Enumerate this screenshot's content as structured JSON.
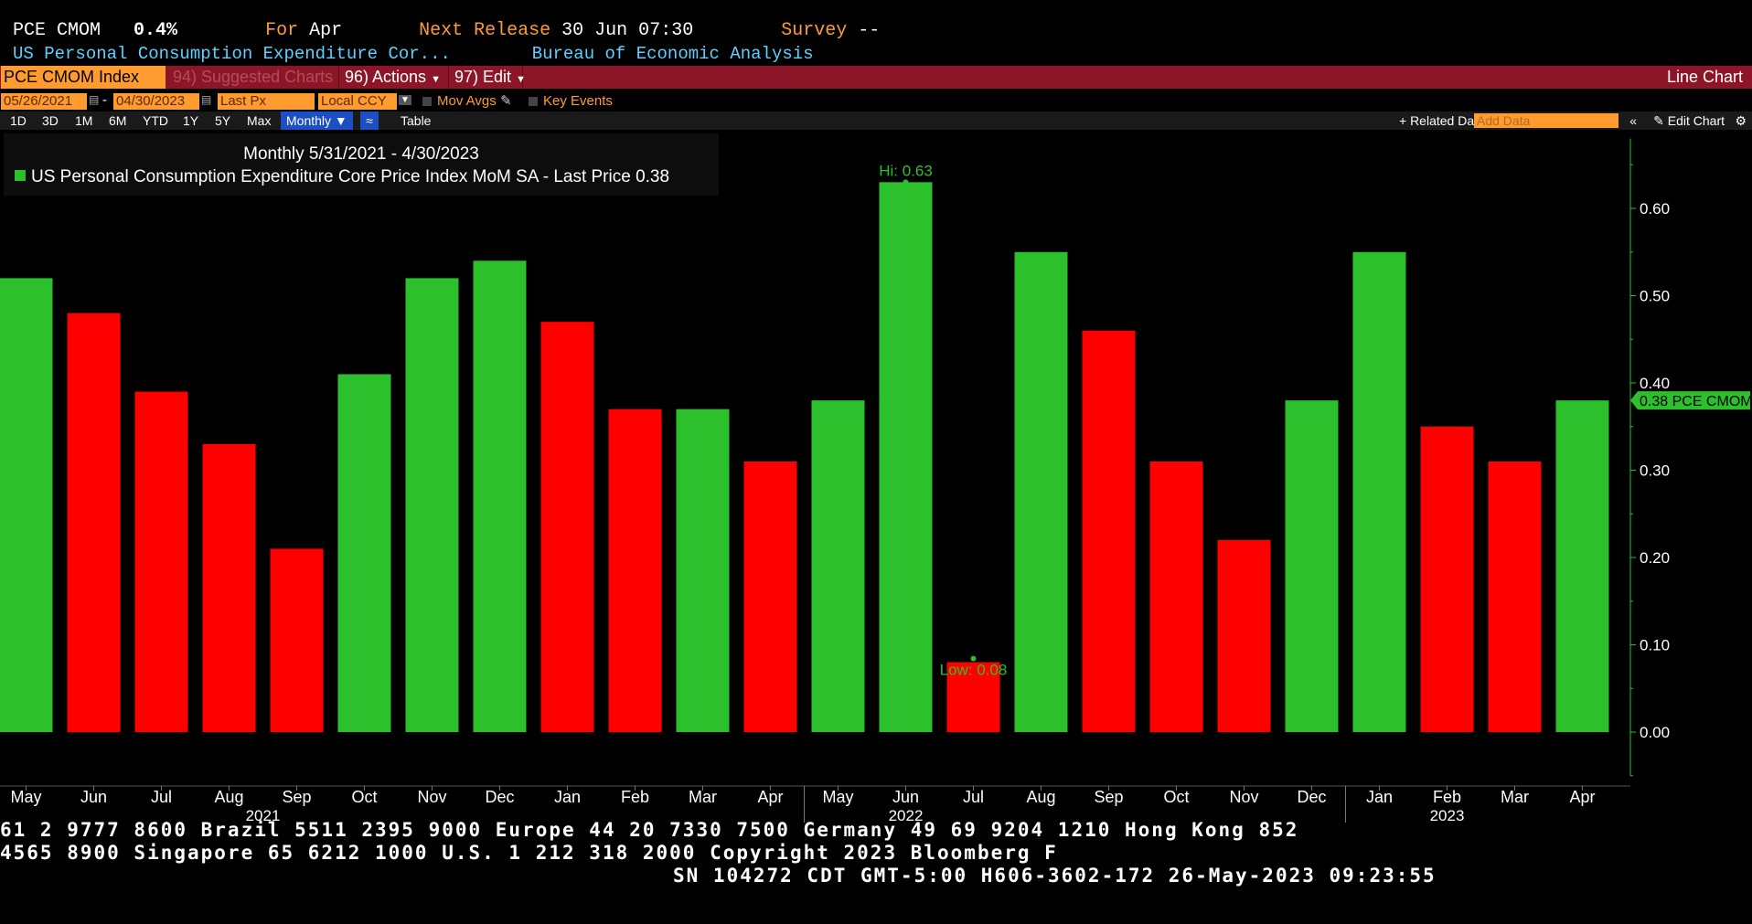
{
  "header": {
    "ticker": "PCE CMOM",
    "value": "0.4%",
    "for_label": "For",
    "for_value": "Apr",
    "release_label": "Next Release",
    "release_value": "30 Jun 07:30",
    "survey_label": "Survey",
    "survey_value": "--",
    "name": "US Personal Consumption Expenditure Cor...",
    "source": "Bureau of Economic Analysis"
  },
  "toolbar": {
    "security": "PCE CMOM Index",
    "suggested": "94) Suggested Charts",
    "actions": "96) Actions",
    "edit": "97) Edit",
    "chart_type": "Line Chart",
    "start_date": "05/26/2021",
    "dash": "-",
    "end_date": "04/30/2023",
    "price_field": "Last Px",
    "currency": "Local CCY",
    "mov_avgs": "Mov Avgs",
    "key_events": "Key Events",
    "periods": [
      "1D",
      "3D",
      "1M",
      "6M",
      "YTD",
      "1Y",
      "5Y",
      "Max"
    ],
    "frequency": "Monthly",
    "table": "Table",
    "related": "+ Related Dat",
    "add_data_placeholder": "Add Data",
    "edit_chart": "Edit Chart"
  },
  "colors": {
    "up": "#2dc02d",
    "down": "#ff0000",
    "accent": "#ff9b2f",
    "bar": "#8c1627"
  },
  "chart_data": {
    "type": "bar",
    "title": "Monthly 5/31/2021 - 4/30/2023",
    "legend": "US Personal Consumption Expenditure Core Price Index MoM SA - Last Price 0.38",
    "categories": [
      "May",
      "Jun",
      "Jul",
      "Aug",
      "Sep",
      "Oct",
      "Nov",
      "Dec",
      "Jan",
      "Feb",
      "Mar",
      "Apr",
      "May",
      "Jun",
      "Jul",
      "Aug",
      "Sep",
      "Oct",
      "Nov",
      "Dec",
      "Jan",
      "Feb",
      "Mar",
      "Apr"
    ],
    "values": [
      0.52,
      0.48,
      0.39,
      0.33,
      0.21,
      0.41,
      0.52,
      0.54,
      0.47,
      0.37,
      0.37,
      0.31,
      0.38,
      0.63,
      0.08,
      0.55,
      0.46,
      0.31,
      0.22,
      0.38,
      0.55,
      0.35,
      0.31,
      0.38
    ],
    "directions": [
      "up",
      "down",
      "down",
      "down",
      "down",
      "up",
      "up",
      "up",
      "down",
      "down",
      "up",
      "down",
      "up",
      "up",
      "down",
      "up",
      "down",
      "down",
      "down",
      "up",
      "up",
      "down",
      "down",
      "up"
    ],
    "years": [
      {
        "label": "2021",
        "index": 3.5
      },
      {
        "label": "2022",
        "index": 13
      },
      {
        "label": "2023",
        "index": 21
      }
    ],
    "ylim": [
      -0.05,
      0.68
    ],
    "yticks": [
      "0.60",
      "0.50",
      "0.40",
      "0.30",
      "0.20",
      "0.10",
      "0.00"
    ],
    "hi_label": "Hi: 0.63",
    "low_label": "Low: 0.08",
    "last_label": "0.38 PCE CMOM"
  },
  "footer": {
    "line1": "61 2 9777 8600 Brazil 5511 2395 9000 Europe 44 20 7330 7500 Germany 49 69 9204 1210 Hong Kong 852",
    "line2": " 4565 8900       Singapore 65 6212 1000       U.S. 1 212 318 2000        Copyright 2023 Bloomberg F",
    "line3": "SN 104272 CDT  GMT-5:00 H606-3602-172 26-May-2023 09:23:55"
  }
}
